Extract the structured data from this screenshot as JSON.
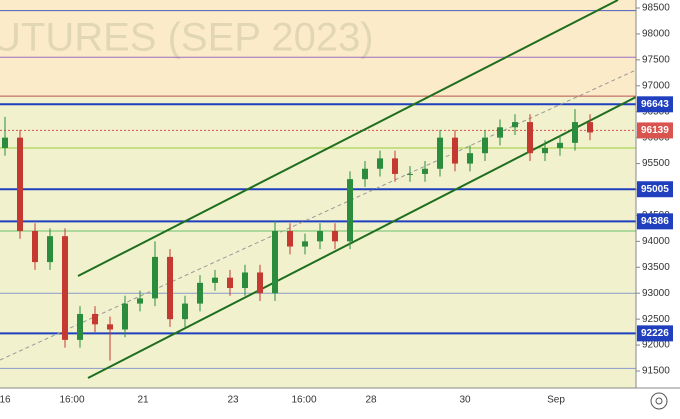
{
  "chart_data": {
    "type": "candlestick",
    "watermark": "UTURES (SEP 2023)",
    "ylim": [
      91500,
      98500
    ],
    "yticks": [
      91500,
      92000,
      92500,
      93000,
      93500,
      94000,
      94500,
      95000,
      95500,
      96000,
      96500,
      97000,
      97500,
      98000,
      98500
    ],
    "x_labels": [
      "16",
      "16:00",
      "21",
      "23",
      "16:00",
      "28",
      "30",
      "Sep"
    ],
    "open": [
      95800,
      96000,
      94200,
      93600,
      94100,
      92100,
      92600,
      92400,
      92300,
      92800,
      92900,
      93700,
      92500,
      92800,
      93200,
      93300,
      93100,
      93400,
      93000,
      94200,
      93900,
      94000,
      94200,
      94000,
      95200,
      95400,
      95600,
      95300,
      95300,
      95400,
      96000,
      95500,
      95700,
      96000,
      96200,
      96300,
      95700,
      95800,
      95900,
      96300
    ],
    "high": [
      96400,
      96150,
      94350,
      94250,
      94250,
      92750,
      92750,
      92550,
      92950,
      93050,
      94000,
      93850,
      92950,
      93350,
      93450,
      93450,
      93550,
      93550,
      94400,
      94350,
      94150,
      94350,
      94350,
      95350,
      95550,
      95750,
      95750,
      95450,
      95550,
      96150,
      96150,
      95850,
      96150,
      96350,
      96450,
      96450,
      95950,
      96050,
      96550,
      96450
    ],
    "low": [
      95650,
      94050,
      93450,
      93450,
      91950,
      91950,
      92250,
      91700,
      92150,
      92650,
      92750,
      92350,
      92350,
      92650,
      93050,
      92950,
      92950,
      92850,
      92850,
      93750,
      93750,
      93850,
      93850,
      93850,
      95050,
      95250,
      95150,
      95150,
      95150,
      95250,
      95350,
      95350,
      95550,
      95850,
      96050,
      95550,
      95550,
      95650,
      95750,
      95950
    ],
    "close": [
      96000,
      94200,
      93600,
      94100,
      92100,
      92600,
      92400,
      92300,
      92800,
      92900,
      93700,
      92500,
      92800,
      93200,
      93300,
      93100,
      93400,
      93000,
      94200,
      93900,
      94000,
      94200,
      94000,
      95200,
      95400,
      95600,
      95300,
      95300,
      95400,
      96000,
      95500,
      95700,
      96000,
      96200,
      96300,
      95700,
      95800,
      95900,
      96300,
      96100
    ],
    "up_color": "#2a8c3c",
    "down_color": "#c43a31",
    "levels": [
      {
        "value": 96643,
        "color": "#1f3fbf"
      },
      {
        "value": 95005,
        "color": "#1f3fbf"
      },
      {
        "value": 94386,
        "color": "#1f3fbf"
      },
      {
        "value": 92226,
        "color": "#1f3fbf"
      },
      {
        "value": 96139,
        "color": "#d9534f"
      }
    ],
    "lines": [
      {
        "value": 98450,
        "color": "#4a5fc0"
      },
      {
        "value": 97550,
        "color": "#9a6fc0"
      },
      {
        "value": 96800,
        "color": "#c0504d"
      },
      {
        "value": 95800,
        "color": "#9ccc3c"
      },
      {
        "value": 94200,
        "color": "#6cc06c"
      },
      {
        "value": 93000,
        "color": "#8a9ac8"
      },
      {
        "value": 91550,
        "color": "#8a9ac8"
      }
    ]
  }
}
